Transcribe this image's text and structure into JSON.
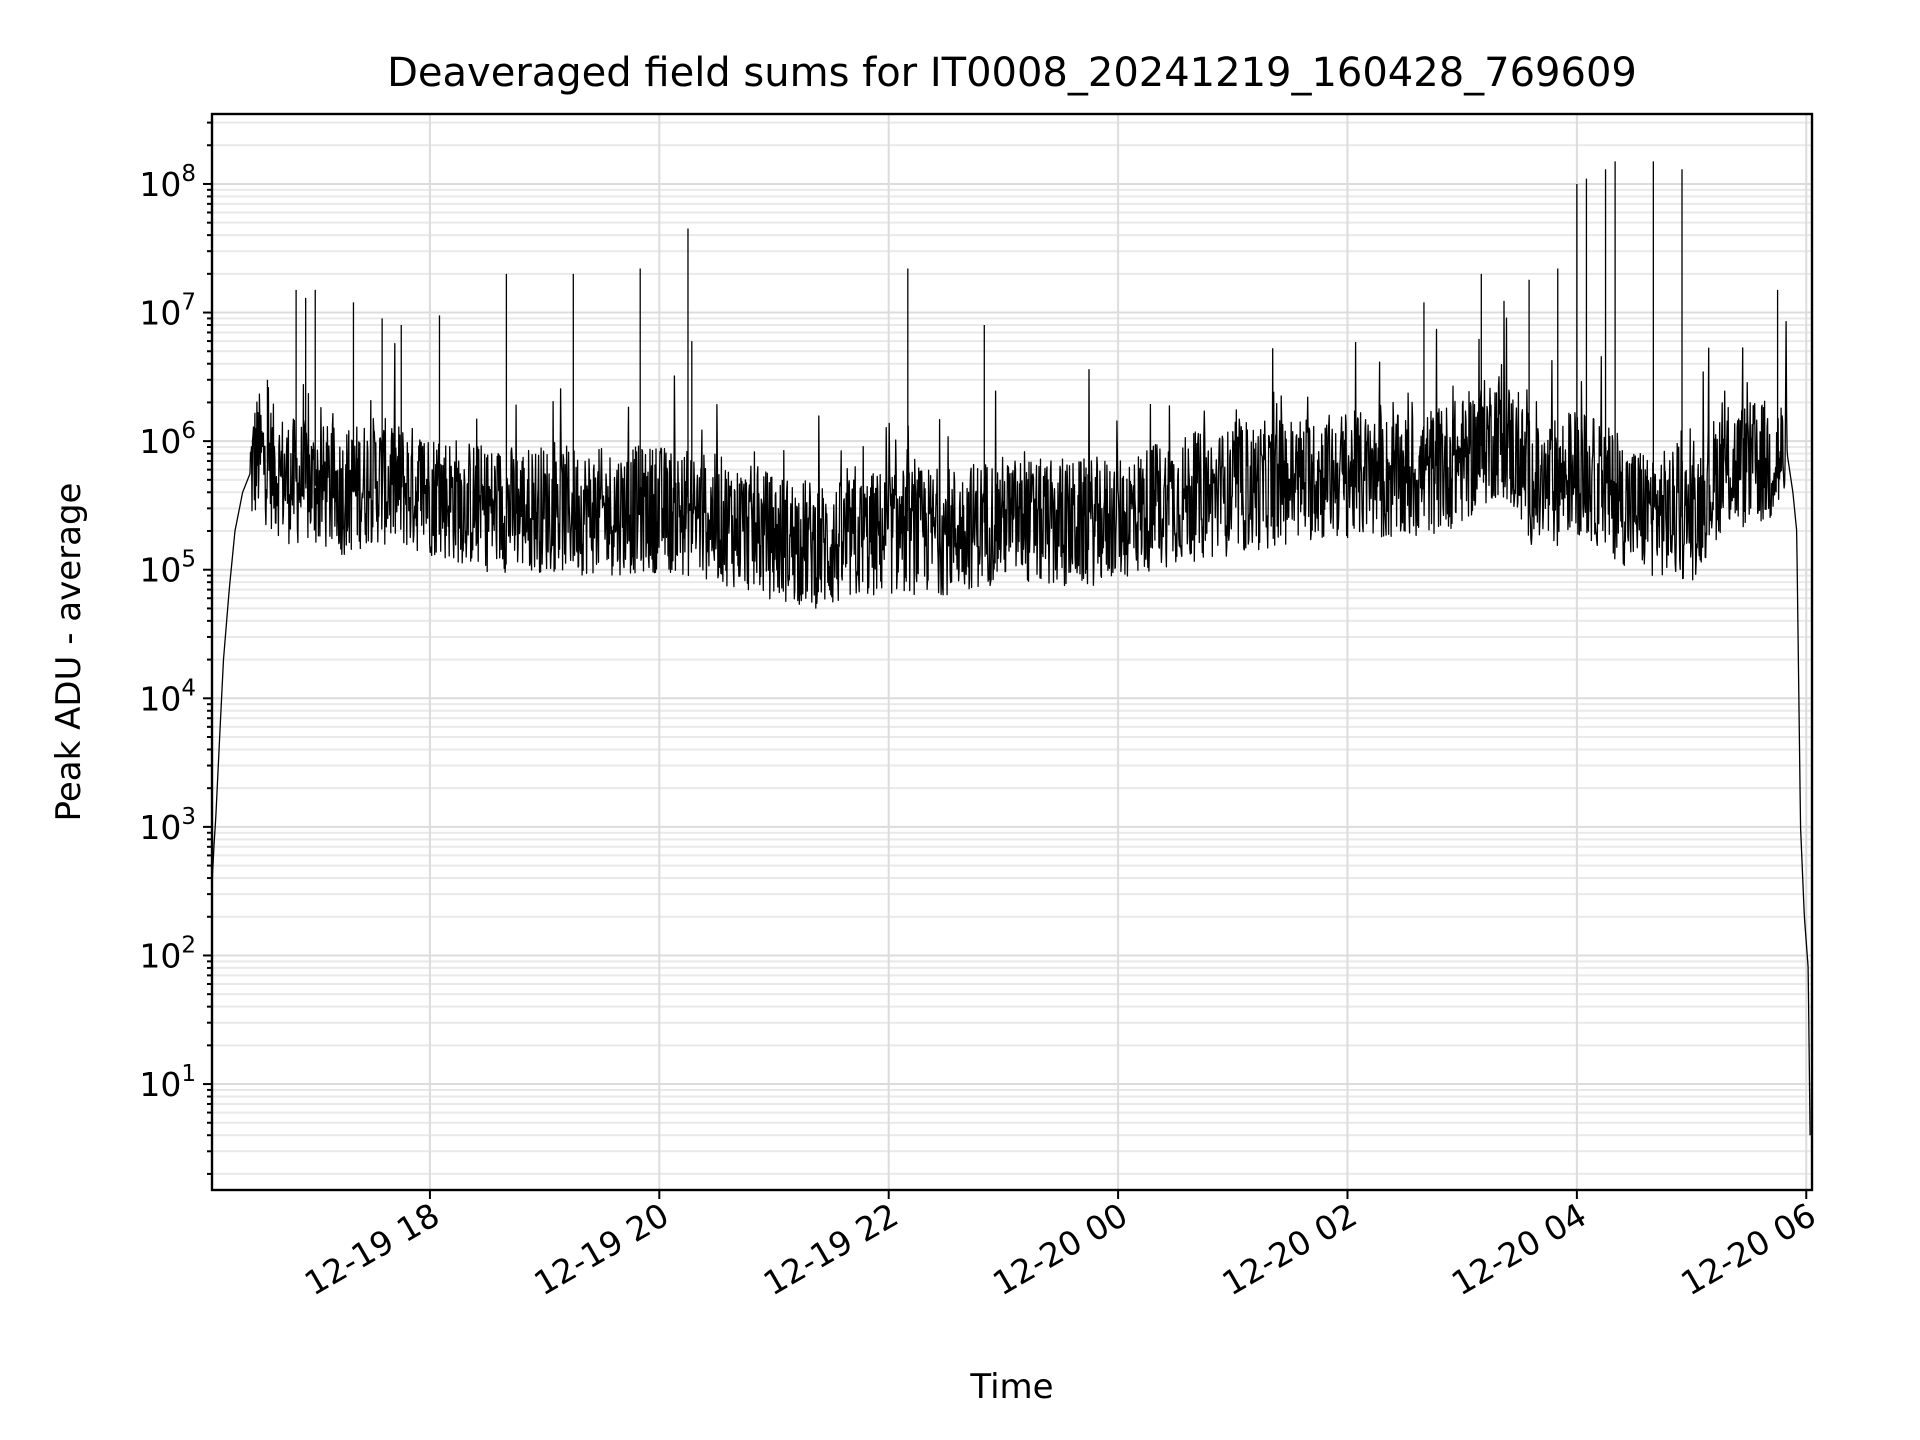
{
  "chart_data": {
    "type": "line",
    "title": "Deaveraged field sums for IT0008_20241219_160428_769609",
    "xlabel": "Time",
    "ylabel": "Peak ADU - average",
    "x_scale": "time",
    "y_scale": "log",
    "xlim": [
      "2024-12-19 16:06",
      "2024-12-20 06:03"
    ],
    "ylim": [
      1.5,
      350000000
    ],
    "grid": true,
    "grid_minor": true,
    "line_color": "#000000",
    "x_ticks": [
      {
        "time": "2024-12-19 18:00",
        "label": "12-19 18"
      },
      {
        "time": "2024-12-19 20:00",
        "label": "12-19 20"
      },
      {
        "time": "2024-12-19 22:00",
        "label": "12-19 22"
      },
      {
        "time": "2024-12-20 00:00",
        "label": "12-20 00"
      },
      {
        "time": "2024-12-20 02:00",
        "label": "12-20 02"
      },
      {
        "time": "2024-12-20 04:00",
        "label": "12-20 04"
      },
      {
        "time": "2024-12-20 06:00",
        "label": "12-20 06"
      }
    ],
    "y_ticks": [
      {
        "value": 10,
        "base": "10",
        "exp": "1"
      },
      {
        "value": 100,
        "base": "10",
        "exp": "2"
      },
      {
        "value": 1000,
        "base": "10",
        "exp": "3"
      },
      {
        "value": 10000,
        "base": "10",
        "exp": "4"
      },
      {
        "value": 100000,
        "base": "10",
        "exp": "5"
      },
      {
        "value": 1000000,
        "base": "10",
        "exp": "6"
      },
      {
        "value": 10000000,
        "base": "10",
        "exp": "7"
      },
      {
        "value": 100000000,
        "base": "10",
        "exp": "8"
      }
    ],
    "series": [
      {
        "points": [
          [
            "2024-12-19 16:06",
            350
          ],
          [
            "2024-12-19 16:07",
            700
          ],
          [
            "2024-12-19 16:08",
            1200
          ],
          [
            "2024-12-19 16:10",
            5000
          ],
          [
            "2024-12-19 16:12",
            20000
          ],
          [
            "2024-12-19 16:15",
            70000
          ],
          [
            "2024-12-19 16:18",
            200000
          ],
          [
            "2024-12-19 16:22",
            400000
          ],
          [
            "2024-12-19 16:30",
            800000
          ],
          [
            "2024-12-19 16:45",
            500000
          ],
          [
            "2024-12-19 17:00",
            450000
          ],
          [
            "2024-12-19 17:15",
            400000
          ],
          [
            "2024-12-19 17:30",
            500000
          ],
          [
            "2024-12-19 18:00",
            400000
          ],
          [
            "2024-12-19 18:30",
            300000
          ],
          [
            "2024-12-19 19:00",
            300000
          ],
          [
            "2024-12-19 19:30",
            280000
          ],
          [
            "2024-12-19 20:00",
            300000
          ],
          [
            "2024-12-19 20:30",
            250000
          ],
          [
            "2024-12-19 21:00",
            180000
          ],
          [
            "2024-12-19 21:30",
            150000
          ],
          [
            "2024-12-19 22:00",
            200000
          ],
          [
            "2024-12-19 22:30",
            200000
          ],
          [
            "2024-12-19 23:00",
            250000
          ],
          [
            "2024-12-19 23:30",
            220000
          ],
          [
            "2024-12-20 00:00",
            250000
          ],
          [
            "2024-12-20 00:30",
            350000
          ],
          [
            "2024-12-20 01:00",
            400000
          ],
          [
            "2024-12-20 01:30",
            500000
          ],
          [
            "2024-12-20 02:00",
            550000
          ],
          [
            "2024-12-20 02:30",
            500000
          ],
          [
            "2024-12-20 03:00",
            700000
          ],
          [
            "2024-12-20 03:20",
            1200000
          ],
          [
            "2024-12-20 03:40",
            400000
          ],
          [
            "2024-12-20 04:00",
            600000
          ],
          [
            "2024-12-20 04:30",
            300000
          ],
          [
            "2024-12-20 05:00",
            250000
          ],
          [
            "2024-12-20 05:15",
            600000
          ],
          [
            "2024-12-20 05:30",
            650000
          ],
          [
            "2024-12-20 05:45",
            700000
          ],
          [
            "2024-12-20 05:50",
            800000
          ],
          [
            "2024-12-20 05:53",
            400000
          ],
          [
            "2024-12-20 05:55",
            200000
          ],
          [
            "2024-12-20 05:57",
            1000
          ],
          [
            "2024-12-20 05:59",
            200
          ],
          [
            "2024-12-20 06:01",
            80
          ],
          [
            "2024-12-20 06:02",
            4
          ]
        ],
        "spikes": [
          [
            "2024-12-19 16:35",
            3000000
          ],
          [
            "2024-12-19 16:50",
            15000000
          ],
          [
            "2024-12-19 16:55",
            13000000
          ],
          [
            "2024-12-19 17:00",
            15000000
          ],
          [
            "2024-12-19 17:20",
            12000000
          ],
          [
            "2024-12-19 17:35",
            9000000
          ],
          [
            "2024-12-19 17:45",
            8000000
          ],
          [
            "2024-12-19 18:05",
            9500000
          ],
          [
            "2024-12-19 18:40",
            20000000
          ],
          [
            "2024-12-19 19:15",
            20000000
          ],
          [
            "2024-12-19 19:50",
            22000000
          ],
          [
            "2024-12-19 20:15",
            45000000
          ],
          [
            "2024-12-19 20:17",
            6000000
          ],
          [
            "2024-12-19 22:10",
            22000000
          ],
          [
            "2024-12-19 22:50",
            8000000
          ],
          [
            "2024-12-20 02:40",
            12000000
          ],
          [
            "2024-12-20 03:10",
            20000000
          ],
          [
            "2024-12-20 03:35",
            18000000
          ],
          [
            "2024-12-20 03:50",
            22000000
          ],
          [
            "2024-12-20 04:00",
            100000000
          ],
          [
            "2024-12-20 04:05",
            110000000
          ],
          [
            "2024-12-20 04:15",
            130000000
          ],
          [
            "2024-12-20 04:20",
            150000000
          ],
          [
            "2024-12-20 04:40",
            150000000
          ],
          [
            "2024-12-20 04:55",
            130000000
          ],
          [
            "2024-12-20 05:45",
            15000000
          ]
        ]
      }
    ]
  }
}
